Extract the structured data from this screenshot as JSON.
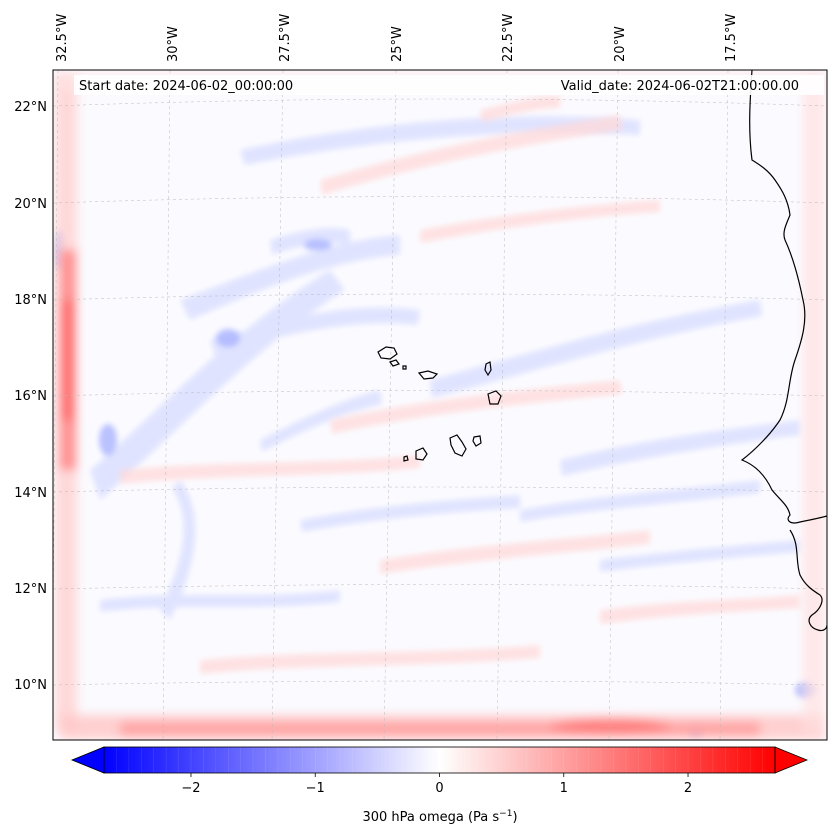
{
  "map": {
    "start_date": "Start date: 2024-06-02_00:00:00",
    "valid_date": "Valid_date: 2024-06-02T21:00:00.00",
    "lon_labels": [
      "32.5°W",
      "30°W",
      "27.5°W",
      "25°W",
      "22.5°W",
      "20°W",
      "17.5°W"
    ],
    "lat_labels": [
      "22°N",
      "20°N",
      "18°N",
      "16°N",
      "14°N",
      "12°N",
      "10°N"
    ],
    "field_colors": {
      "negative": "#0000ff",
      "neutral": "#ffffff",
      "positive": "#ff0000"
    }
  },
  "colorbar": {
    "label": "300 hPa omega (Pa s",
    "label_sup": "−1",
    "label_close": ")",
    "range": [
      -2.7,
      2.7
    ],
    "ticks": [
      {
        "value": -2,
        "label": "−2"
      },
      {
        "value": -1,
        "label": "−1"
      },
      {
        "value": 0,
        "label": "0"
      },
      {
        "value": 1,
        "label": "1"
      },
      {
        "value": 2,
        "label": "2"
      }
    ]
  }
}
